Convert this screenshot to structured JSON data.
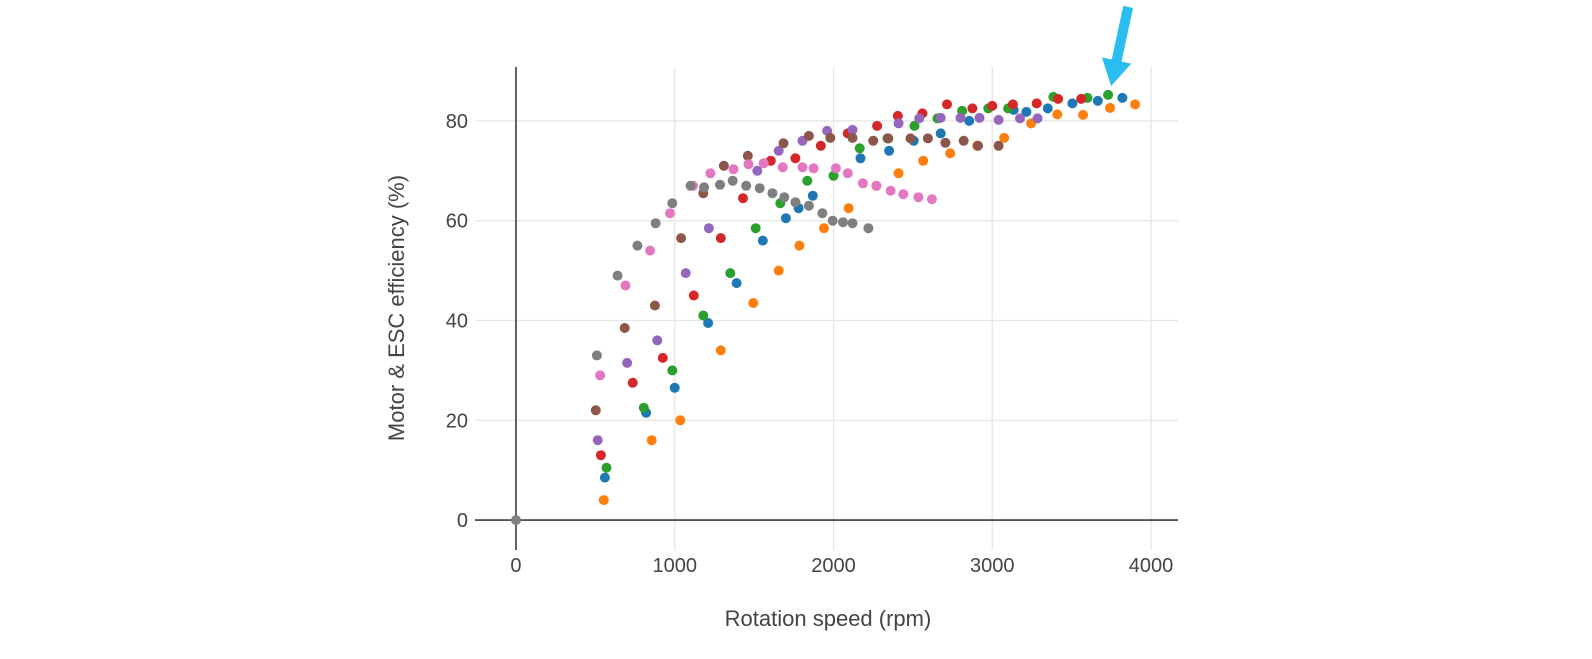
{
  "chart_data": {
    "type": "scatter",
    "title": "",
    "xlabel": "Rotation speed (rpm)",
    "ylabel": "Motor & ESC efficiency (%)",
    "x_ticks": [
      0,
      1000,
      2000,
      3000,
      4000
    ],
    "y_ticks": [
      0,
      20,
      40,
      60,
      80
    ],
    "xlim": [
      -258,
      4170
    ],
    "ylim": [
      -6,
      90.8
    ],
    "grid": true,
    "legend": false,
    "marker_diameter_px": 10,
    "colors": {
      "grid": "#e6e6e6",
      "zeroline": "#3a3a3a",
      "text": "#444444",
      "background": "#ffffff"
    },
    "series": [
      {
        "name": "blue",
        "color": "#1f77b4",
        "points": [
          [
            560,
            8.5
          ],
          [
            820,
            21.5
          ],
          [
            1000,
            26.5
          ],
          [
            1210,
            39.5
          ],
          [
            1390,
            47.5
          ],
          [
            1555,
            56
          ],
          [
            1700,
            60.5
          ],
          [
            1780,
            62.5
          ],
          [
            1870,
            65
          ],
          [
            2170,
            72.5
          ],
          [
            2350,
            74
          ],
          [
            2505,
            76
          ],
          [
            2675,
            77.5
          ],
          [
            2855,
            80
          ],
          [
            3135,
            82.2
          ],
          [
            3215,
            81.8
          ],
          [
            3350,
            82.5
          ],
          [
            3505,
            83.5
          ],
          [
            3665,
            84
          ],
          [
            3820,
            84.6
          ]
        ]
      },
      {
        "name": "orange",
        "color": "#ff7f0e",
        "points": [
          [
            553,
            4
          ],
          [
            855,
            16
          ],
          [
            1035,
            20
          ],
          [
            1290,
            34
          ],
          [
            1495,
            43.5
          ],
          [
            1655,
            50
          ],
          [
            1785,
            55
          ],
          [
            1940,
            58.5
          ],
          [
            2095,
            62.5
          ],
          [
            2270,
            67
          ],
          [
            2410,
            69.5
          ],
          [
            2565,
            72
          ],
          [
            2735,
            73.5
          ],
          [
            2905,
            75
          ],
          [
            3075,
            76.6
          ],
          [
            3245,
            79.5
          ],
          [
            3410,
            81.3
          ],
          [
            3572,
            81.2
          ],
          [
            3742,
            82.6
          ],
          [
            3900,
            83.3
          ]
        ]
      },
      {
        "name": "green",
        "color": "#2ca02c",
        "points": [
          [
            570,
            10.5
          ],
          [
            805,
            22.5
          ],
          [
            985,
            30
          ],
          [
            1180,
            41
          ],
          [
            1350,
            49.5
          ],
          [
            1510,
            58.5
          ],
          [
            1665,
            63.5
          ],
          [
            1835,
            68
          ],
          [
            2000,
            69
          ],
          [
            2165,
            74.5
          ],
          [
            2340,
            76.5
          ],
          [
            2510,
            79
          ],
          [
            2655,
            80.5
          ],
          [
            2810,
            82
          ],
          [
            2975,
            82.5
          ],
          [
            3100,
            82.5
          ],
          [
            3385,
            84.8
          ],
          [
            3600,
            84.6
          ],
          [
            3730,
            85.2
          ]
        ]
      },
      {
        "name": "red",
        "color": "#d62728",
        "points": [
          [
            535,
            13
          ],
          [
            735,
            27.5
          ],
          [
            925,
            32.5
          ],
          [
            1120,
            45
          ],
          [
            1290,
            56.5
          ],
          [
            1430,
            64.5
          ],
          [
            1605,
            72
          ],
          [
            1760,
            72.5
          ],
          [
            1920,
            75
          ],
          [
            2090,
            77.5
          ],
          [
            2275,
            79
          ],
          [
            2405,
            81
          ],
          [
            2560,
            81.5
          ],
          [
            2715,
            83.3
          ],
          [
            2875,
            82.5
          ],
          [
            3000,
            83
          ],
          [
            3130,
            83.3
          ],
          [
            3280,
            83.5
          ],
          [
            3415,
            84.4
          ],
          [
            3560,
            84.4
          ]
        ]
      },
      {
        "name": "purple",
        "color": "#9467bd",
        "points": [
          [
            515,
            16
          ],
          [
            700,
            31.5
          ],
          [
            890,
            36
          ],
          [
            1070,
            49.5
          ],
          [
            1215,
            58.5
          ],
          [
            1520,
            70
          ],
          [
            1655,
            74
          ],
          [
            1805,
            76
          ],
          [
            1960,
            78
          ],
          [
            2120,
            78.2
          ],
          [
            2410,
            79.5
          ],
          [
            2540,
            80.5
          ],
          [
            2675,
            80.6
          ],
          [
            2800,
            80.6
          ],
          [
            2920,
            80.6
          ],
          [
            3040,
            80.2
          ],
          [
            3175,
            80.5
          ],
          [
            3285,
            80.5
          ]
        ]
      },
      {
        "name": "brown",
        "color": "#8c564b",
        "points": [
          [
            503,
            22
          ],
          [
            685,
            38.5
          ],
          [
            875,
            43
          ],
          [
            1040,
            56.5
          ],
          [
            1180,
            65.5
          ],
          [
            1310,
            71
          ],
          [
            1460,
            73
          ],
          [
            1685,
            75.5
          ],
          [
            1845,
            77
          ],
          [
            1980,
            76.6
          ],
          [
            2120,
            76.6
          ],
          [
            2250,
            76
          ],
          [
            2345,
            76.5
          ],
          [
            2485,
            76.5
          ],
          [
            2595,
            76.5
          ],
          [
            2705,
            75.6
          ],
          [
            2820,
            76
          ],
          [
            2910,
            75
          ],
          [
            3040,
            75
          ]
        ]
      },
      {
        "name": "pink",
        "color": "#e377c2",
        "points": [
          [
            530,
            29
          ],
          [
            690,
            47
          ],
          [
            845,
            54
          ],
          [
            970,
            61.5
          ],
          [
            1115,
            67
          ],
          [
            1225,
            69.5
          ],
          [
            1370,
            70.3
          ],
          [
            1465,
            71.3
          ],
          [
            1560,
            71.5
          ],
          [
            1680,
            70.7
          ],
          [
            1805,
            70.7
          ],
          [
            1875,
            70.5
          ],
          [
            2015,
            70.5
          ],
          [
            2090,
            69.5
          ],
          [
            2185,
            67.5
          ],
          [
            2270,
            67
          ],
          [
            2360,
            66
          ],
          [
            2440,
            65.3
          ],
          [
            2535,
            64.7
          ],
          [
            2620,
            64.3
          ]
        ]
      },
      {
        "name": "gray",
        "color": "#7f7f7f",
        "points": [
          [
            0,
            0
          ],
          [
            510,
            33
          ],
          [
            640,
            49
          ],
          [
            765,
            55
          ],
          [
            880,
            59.5
          ],
          [
            985,
            63.5
          ],
          [
            1100,
            67
          ],
          [
            1185,
            66.7
          ],
          [
            1285,
            67.2
          ],
          [
            1365,
            68
          ],
          [
            1450,
            67
          ],
          [
            1535,
            66.5
          ],
          [
            1615,
            65.5
          ],
          [
            1690,
            64.7
          ],
          [
            1760,
            63.7
          ],
          [
            1845,
            63
          ],
          [
            1930,
            61.5
          ],
          [
            1995,
            60
          ],
          [
            2060,
            59.7
          ],
          [
            2120,
            59.5
          ],
          [
            2220,
            58.5
          ]
        ]
      }
    ],
    "annotation": {
      "type": "arrow",
      "color": "#29bdf0",
      "target": {
        "x": 3730,
        "y": 85.2
      },
      "description": "cyan arrow pointing at top-right green data point"
    }
  }
}
